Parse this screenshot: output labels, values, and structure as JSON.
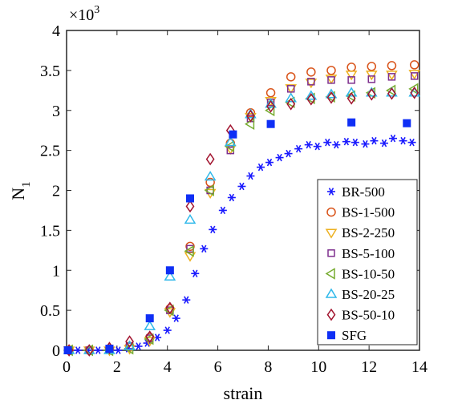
{
  "chart_data": {
    "type": "scatter",
    "xlabel": "strain",
    "ylabel": "N",
    "ylabel_sub": "1",
    "y_multiplier": "×10",
    "y_multiplier_exp": "3",
    "xlim": [
      0,
      14
    ],
    "ylim": [
      0,
      4
    ],
    "xticks": [
      0,
      2,
      4,
      6,
      8,
      10,
      12,
      14
    ],
    "xtick_labels": [
      "0",
      "2",
      "4",
      "6",
      "8",
      "10",
      "12",
      "14"
    ],
    "yticks": [
      0,
      0.5,
      1,
      1.5,
      2,
      2.5,
      3,
      3.5,
      4
    ],
    "ytick_labels": [
      "0",
      "0.5",
      "1",
      "1.5",
      "2",
      "2.5",
      "3",
      "3.5",
      "4"
    ],
    "grid": false,
    "legend_position": "lower-right",
    "series": [
      {
        "name": "BR-500",
        "marker": "asterisk",
        "color": "#1a1aff",
        "points": [
          [
            0.05,
            0.0
          ],
          [
            0.45,
            0.0
          ],
          [
            0.85,
            0.0
          ],
          [
            1.25,
            0.0
          ],
          [
            1.65,
            0.0
          ],
          [
            2.05,
            0.0
          ],
          [
            2.45,
            0.02
          ],
          [
            2.85,
            0.05
          ],
          [
            3.2,
            0.09
          ],
          [
            3.6,
            0.16
          ],
          [
            4.0,
            0.25
          ],
          [
            4.35,
            0.4
          ],
          [
            4.75,
            0.63
          ],
          [
            5.1,
            0.96
          ],
          [
            5.45,
            1.27
          ],
          [
            5.8,
            1.51
          ],
          [
            6.2,
            1.75
          ],
          [
            6.55,
            1.91
          ],
          [
            6.95,
            2.05
          ],
          [
            7.3,
            2.18
          ],
          [
            7.7,
            2.29
          ],
          [
            8.05,
            2.35
          ],
          [
            8.45,
            2.41
          ],
          [
            8.8,
            2.46
          ],
          [
            9.2,
            2.52
          ],
          [
            9.6,
            2.57
          ],
          [
            9.95,
            2.55
          ],
          [
            10.35,
            2.6
          ],
          [
            10.7,
            2.57
          ],
          [
            11.1,
            2.61
          ],
          [
            11.45,
            2.6
          ],
          [
            11.85,
            2.58
          ],
          [
            12.2,
            2.62
          ],
          [
            12.6,
            2.59
          ],
          [
            12.95,
            2.65
          ],
          [
            13.35,
            2.62
          ],
          [
            13.7,
            2.6
          ]
        ]
      },
      {
        "name": "BS-1-500",
        "marker": "circle",
        "color": "#d95319",
        "points": [
          [
            0.1,
            0.0
          ],
          [
            0.9,
            0.0
          ],
          [
            1.7,
            0.02
          ],
          [
            2.5,
            0.05
          ],
          [
            3.3,
            0.16
          ],
          [
            4.1,
            0.52
          ],
          [
            4.9,
            1.3
          ],
          [
            5.7,
            2.1
          ],
          [
            6.5,
            2.59
          ],
          [
            7.3,
            2.97
          ],
          [
            8.1,
            3.22
          ],
          [
            8.9,
            3.42
          ],
          [
            9.7,
            3.48
          ],
          [
            10.5,
            3.5
          ],
          [
            11.3,
            3.54
          ],
          [
            12.1,
            3.55
          ],
          [
            12.9,
            3.56
          ],
          [
            13.8,
            3.57
          ]
        ]
      },
      {
        "name": "BS-2-250",
        "marker": "triangle-down",
        "color": "#edb120",
        "points": [
          [
            0.1,
            0.0
          ],
          [
            0.9,
            0.0
          ],
          [
            1.7,
            0.0
          ],
          [
            2.5,
            0.02
          ],
          [
            3.3,
            0.12
          ],
          [
            4.1,
            0.48
          ],
          [
            4.9,
            1.18
          ],
          [
            5.7,
            1.97
          ],
          [
            6.5,
            2.52
          ],
          [
            7.3,
            2.92
          ],
          [
            8.1,
            3.12
          ],
          [
            8.9,
            3.28
          ],
          [
            9.7,
            3.35
          ],
          [
            10.5,
            3.4
          ],
          [
            11.3,
            3.45
          ],
          [
            12.1,
            3.45
          ],
          [
            12.9,
            3.45
          ],
          [
            13.8,
            3.46
          ]
        ]
      },
      {
        "name": "BS-5-100",
        "marker": "square-open",
        "color": "#7e2f8e",
        "points": [
          [
            0.1,
            0.0
          ],
          [
            0.9,
            0.0
          ],
          [
            1.7,
            0.02
          ],
          [
            2.5,
            0.05
          ],
          [
            3.3,
            0.15
          ],
          [
            4.1,
            0.5
          ],
          [
            4.9,
            1.27
          ],
          [
            5.7,
            2.0
          ],
          [
            6.5,
            2.5
          ],
          [
            7.3,
            2.9
          ],
          [
            8.1,
            3.1
          ],
          [
            8.9,
            3.27
          ],
          [
            9.7,
            3.36
          ],
          [
            10.5,
            3.38
          ],
          [
            11.3,
            3.38
          ],
          [
            12.1,
            3.39
          ],
          [
            12.9,
            3.42
          ],
          [
            13.8,
            3.43
          ]
        ]
      },
      {
        "name": "BS-10-50",
        "marker": "triangle-left",
        "color": "#77ac30",
        "points": [
          [
            0.1,
            0.0
          ],
          [
            0.9,
            0.0
          ],
          [
            1.7,
            0.0
          ],
          [
            2.5,
            0.02
          ],
          [
            3.3,
            0.14
          ],
          [
            4.1,
            0.5
          ],
          [
            4.9,
            1.24
          ],
          [
            5.7,
            2.0
          ],
          [
            6.5,
            2.55
          ],
          [
            7.3,
            2.83
          ],
          [
            8.1,
            3.0
          ],
          [
            8.9,
            3.1
          ],
          [
            9.7,
            3.15
          ],
          [
            10.5,
            3.17
          ],
          [
            11.3,
            3.18
          ],
          [
            12.1,
            3.22
          ],
          [
            12.9,
            3.25
          ],
          [
            13.8,
            3.27
          ]
        ]
      },
      {
        "name": "BS-20-25",
        "marker": "triangle-up",
        "color": "#2fb8ea",
        "points": [
          [
            0.1,
            0.0
          ],
          [
            0.9,
            0.0
          ],
          [
            1.7,
            0.0
          ],
          [
            2.5,
            0.05
          ],
          [
            3.3,
            0.3
          ],
          [
            4.1,
            0.92
          ],
          [
            4.9,
            1.63
          ],
          [
            5.7,
            2.17
          ],
          [
            6.5,
            2.6
          ],
          [
            7.3,
            2.95
          ],
          [
            8.1,
            3.08
          ],
          [
            8.9,
            3.15
          ],
          [
            9.7,
            3.18
          ],
          [
            10.5,
            3.2
          ],
          [
            11.3,
            3.22
          ],
          [
            12.1,
            3.22
          ],
          [
            12.9,
            3.22
          ],
          [
            13.8,
            3.22
          ]
        ]
      },
      {
        "name": "BS-50-10",
        "marker": "diamond",
        "color": "#a2142f",
        "points": [
          [
            0.1,
            0.0
          ],
          [
            0.9,
            0.0
          ],
          [
            1.7,
            0.03
          ],
          [
            2.5,
            0.11
          ],
          [
            3.3,
            0.17
          ],
          [
            4.1,
            0.53
          ],
          [
            4.9,
            1.8
          ],
          [
            5.7,
            2.39
          ],
          [
            6.5,
            2.75
          ],
          [
            7.3,
            2.93
          ],
          [
            8.1,
            3.05
          ],
          [
            8.9,
            3.08
          ],
          [
            9.7,
            3.14
          ],
          [
            10.5,
            3.16
          ],
          [
            11.3,
            3.15
          ],
          [
            12.1,
            3.2
          ],
          [
            12.9,
            3.21
          ],
          [
            13.8,
            3.22
          ]
        ]
      },
      {
        "name": "SFG",
        "marker": "square-filled",
        "color": "#0f2ff5",
        "points": [
          [
            0.05,
            0.0
          ],
          [
            1.7,
            0.02
          ],
          [
            3.3,
            0.4
          ],
          [
            4.1,
            1.0
          ],
          [
            4.9,
            1.9
          ],
          [
            6.6,
            2.7
          ],
          [
            8.1,
            2.83
          ],
          [
            11.3,
            2.85
          ],
          [
            13.5,
            2.84
          ]
        ]
      }
    ]
  }
}
